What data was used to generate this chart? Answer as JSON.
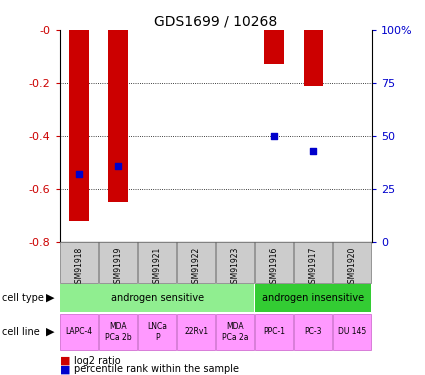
{
  "title": "GDS1699 / 10268",
  "samples": [
    "GSM91918",
    "GSM91919",
    "GSM91921",
    "GSM91922",
    "GSM91923",
    "GSM91916",
    "GSM91917",
    "GSM91920"
  ],
  "log2_ratio": [
    -0.72,
    -0.65,
    0.0,
    0.0,
    0.0,
    -0.13,
    -0.21,
    0.0
  ],
  "percentile_rank": [
    32,
    36,
    null,
    null,
    null,
    50,
    43,
    null
  ],
  "ylim_left": [
    -0.8,
    0.0
  ],
  "ylim_right": [
    0,
    100
  ],
  "yticks_left": [
    -0.8,
    -0.6,
    -0.4,
    -0.2,
    0.0
  ],
  "yticks_right": [
    0,
    25,
    50,
    75,
    100
  ],
  "ytick_labels_left": [
    "-0.8",
    "-0.6",
    "-0.4",
    "-0.2",
    "-0"
  ],
  "ytick_labels_right": [
    "0",
    "25",
    "50",
    "75",
    "100%"
  ],
  "cell_type_groups": [
    {
      "label": "androgen sensitive",
      "start": 0,
      "end": 5,
      "color": "#90EE90"
    },
    {
      "label": "androgen insensitive",
      "start": 5,
      "end": 8,
      "color": "#33CC33"
    }
  ],
  "cell_lines": [
    "LAPC-4",
    "MDA\nPCa 2b",
    "LNCa\nP",
    "22Rv1",
    "MDA\nPCa 2a",
    "PPC-1",
    "PC-3",
    "DU 145"
  ],
  "cell_line_color": "#FF99FF",
  "sample_label_color": "#CCCCCC",
  "bar_color": "#CC0000",
  "dot_color": "#0000CC",
  "bar_width": 0.5,
  "dot_size": 25,
  "left_label_color": "#CC0000",
  "right_label_color": "#0000CC"
}
